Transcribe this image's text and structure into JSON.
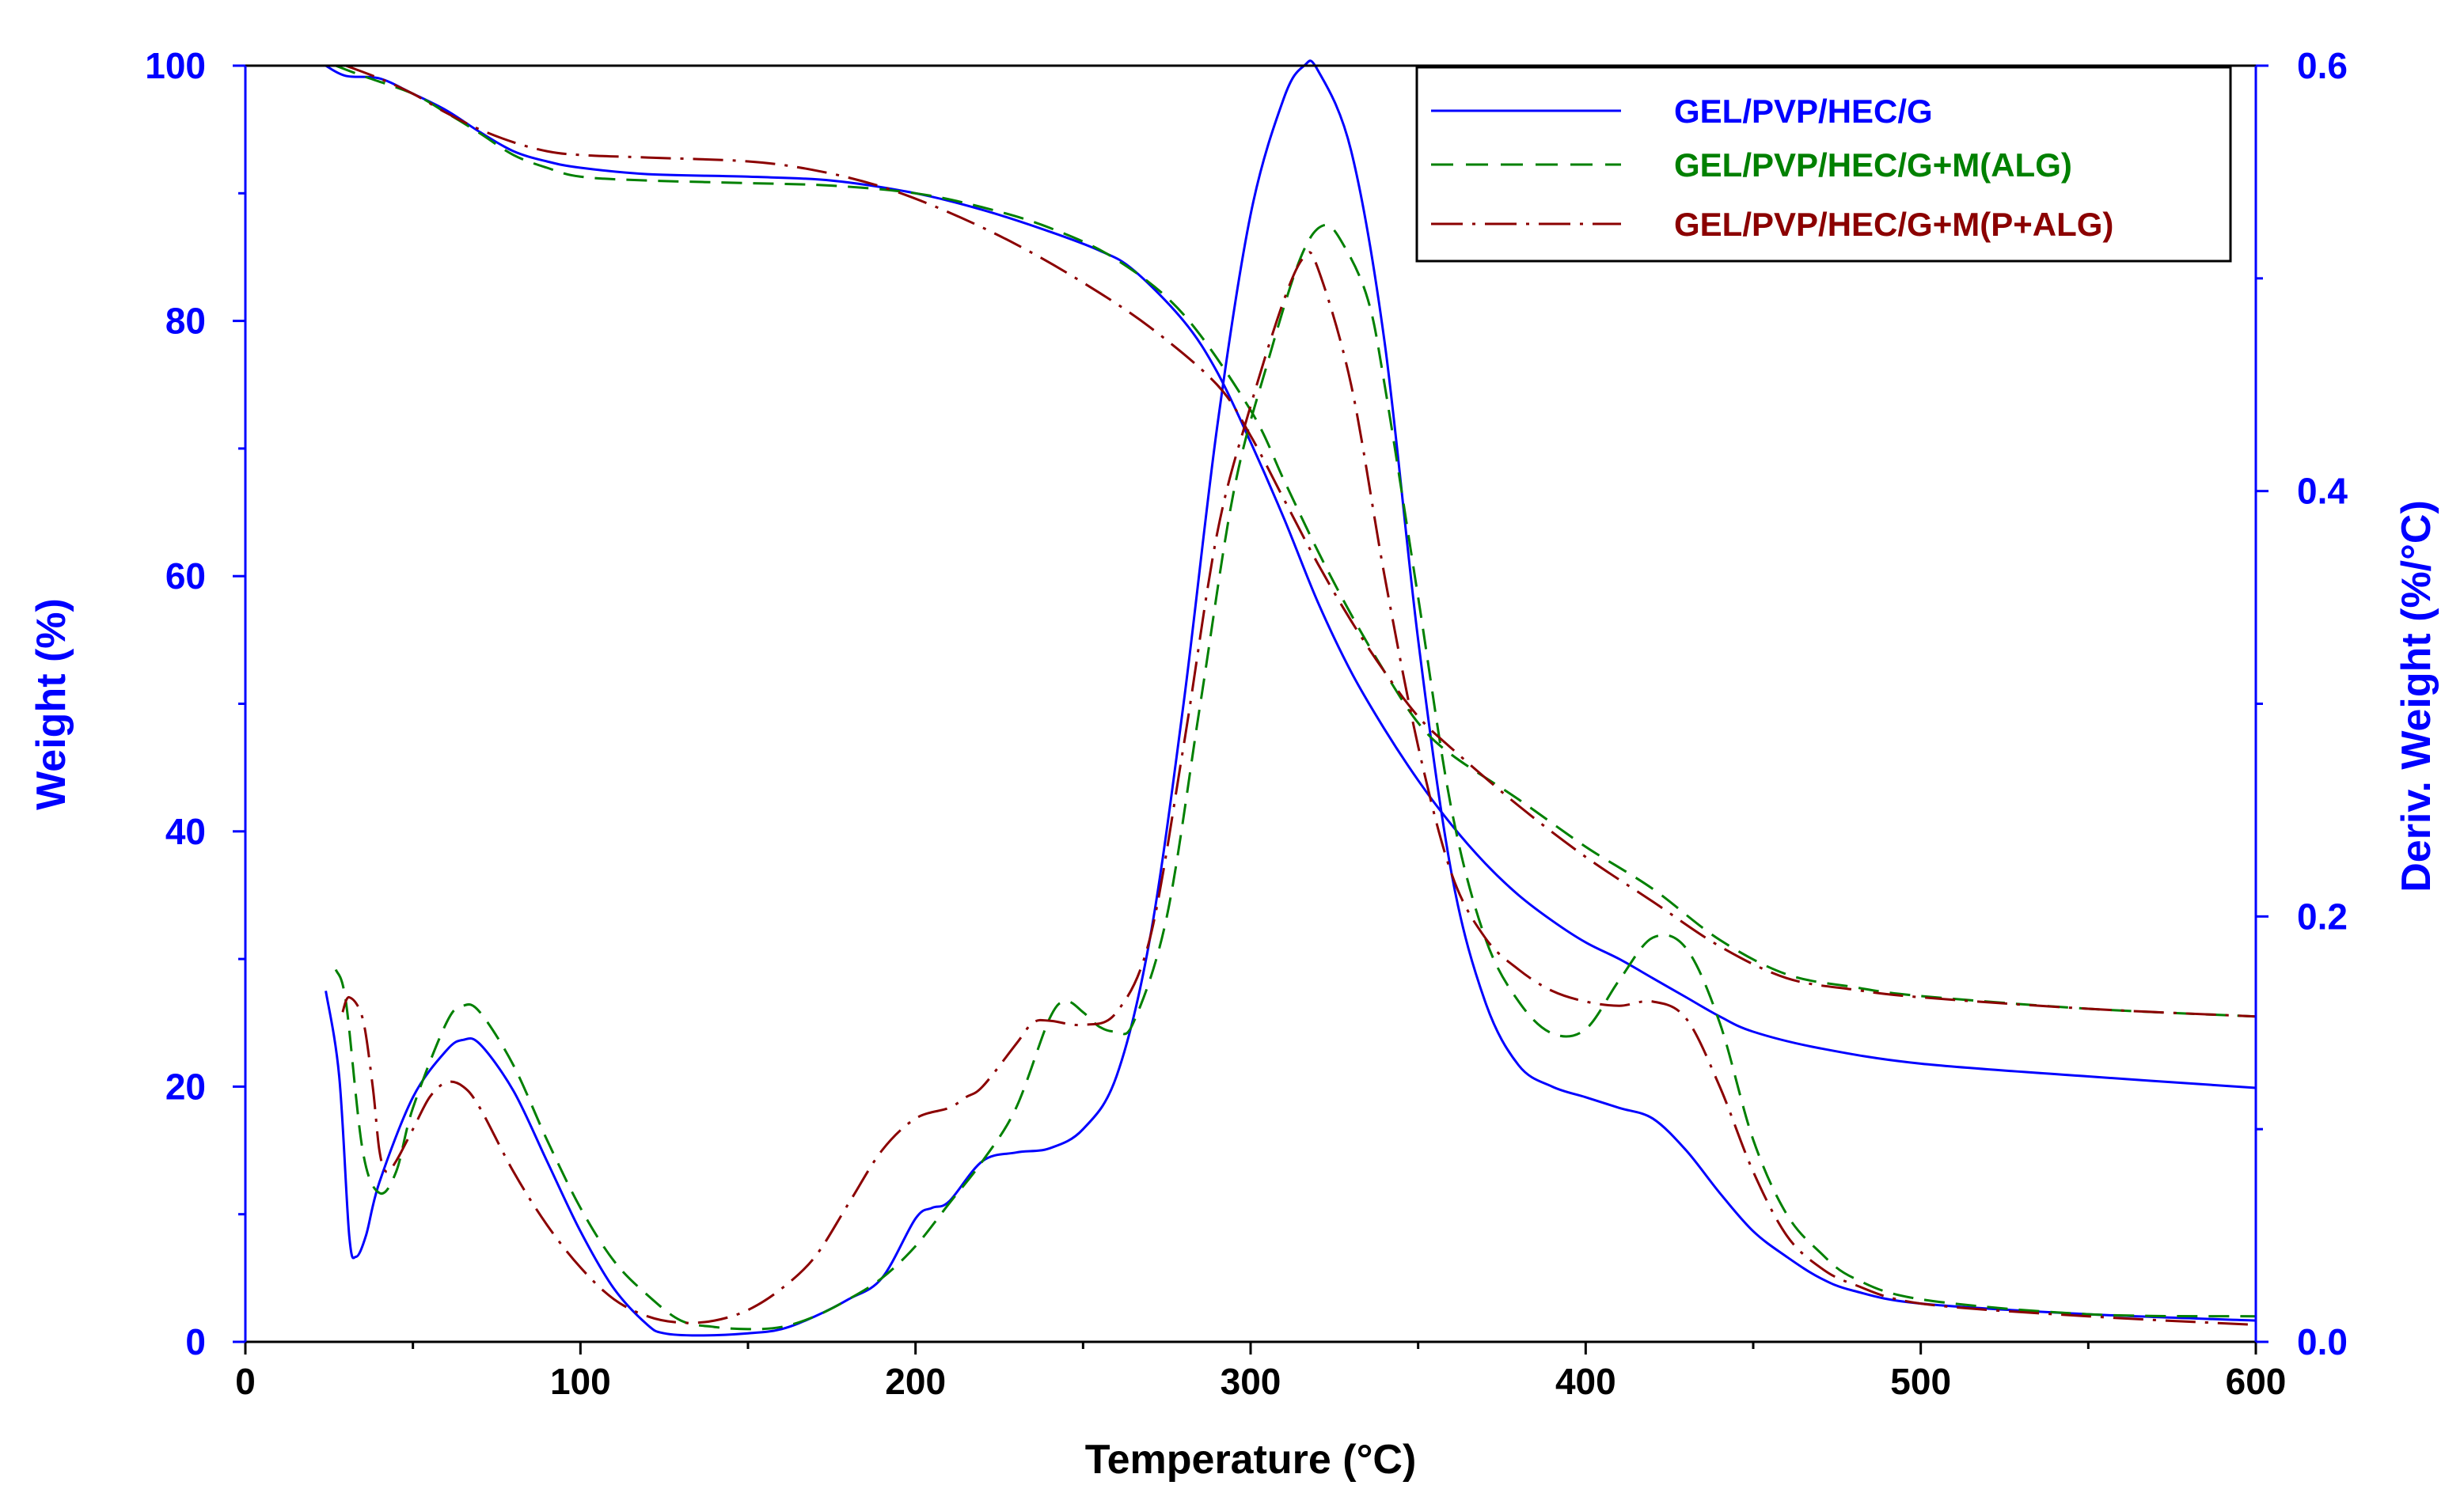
{
  "chart_data": {
    "type": "line",
    "title": "",
    "xlabel": "Temperature (°C)",
    "ylabel_left": "Weight (%)",
    "ylabel_right": "Deriv. Weight (%/°C)",
    "xlim": [
      0,
      600
    ],
    "ylim_left": [
      0,
      100
    ],
    "ylim_right": [
      0,
      0.6
    ],
    "x_ticks": [
      "0",
      "100",
      "200",
      "300",
      "400",
      "500",
      "600"
    ],
    "y_left_ticks": [
      "0",
      "20",
      "40",
      "60",
      "80",
      "100"
    ],
    "y_right_ticks": [
      "0.0",
      "0.2",
      "0.4",
      "0.6"
    ],
    "grid": false,
    "legend_position": "top-right",
    "colors": {
      "axis": "#0000ff",
      "frame": "#000000",
      "text": "#000000"
    },
    "series": [
      {
        "name": "GEL/PVP/HEC/G",
        "color": "#0000ff",
        "dash": "solid",
        "weight": [
          [
            24,
            100
          ],
          [
            30,
            99.2
          ],
          [
            40,
            99
          ],
          [
            50,
            97.8
          ],
          [
            60,
            96.5
          ],
          [
            70,
            94.8
          ],
          [
            80,
            93.3
          ],
          [
            90,
            92.5
          ],
          [
            100,
            92
          ],
          [
            120,
            91.5
          ],
          [
            150,
            91.3
          ],
          [
            175,
            91
          ],
          [
            200,
            90
          ],
          [
            220,
            88.7
          ],
          [
            240,
            87
          ],
          [
            255,
            85.5
          ],
          [
            265,
            84
          ],
          [
            280,
            80
          ],
          [
            290,
            76
          ],
          [
            300,
            70.5
          ],
          [
            310,
            64.5
          ],
          [
            320,
            58
          ],
          [
            330,
            52.5
          ],
          [
            340,
            48
          ],
          [
            350,
            44
          ],
          [
            360,
            40.5
          ],
          [
            370,
            37.5
          ],
          [
            380,
            35
          ],
          [
            390,
            33
          ],
          [
            400,
            31.3
          ],
          [
            410,
            30
          ],
          [
            420,
            28.5
          ],
          [
            430,
            27
          ],
          [
            440,
            25.5
          ],
          [
            450,
            24.3
          ],
          [
            470,
            23
          ],
          [
            500,
            21.8
          ],
          [
            550,
            20.8
          ],
          [
            600,
            19.9
          ]
        ],
        "deriv": [
          [
            24,
            0.165
          ],
          [
            28,
            0.125
          ],
          [
            31,
            0.05
          ],
          [
            33,
            0.04
          ],
          [
            36,
            0.05
          ],
          [
            40,
            0.075
          ],
          [
            50,
            0.115
          ],
          [
            60,
            0.137
          ],
          [
            65,
            0.142
          ],
          [
            70,
            0.14
          ],
          [
            80,
            0.118
          ],
          [
            90,
            0.085
          ],
          [
            100,
            0.052
          ],
          [
            110,
            0.025
          ],
          [
            120,
            0.008
          ],
          [
            125,
            0.004
          ],
          [
            135,
            0.003
          ],
          [
            150,
            0.004
          ],
          [
            160,
            0.006
          ],
          [
            170,
            0.012
          ],
          [
            180,
            0.02
          ],
          [
            190,
            0.03
          ],
          [
            200,
            0.058
          ],
          [
            205,
            0.063
          ],
          [
            210,
            0.066
          ],
          [
            220,
            0.085
          ],
          [
            230,
            0.089
          ],
          [
            240,
            0.091
          ],
          [
            250,
            0.1
          ],
          [
            260,
            0.125
          ],
          [
            270,
            0.19
          ],
          [
            280,
            0.3
          ],
          [
            290,
            0.43
          ],
          [
            300,
            0.53
          ],
          [
            310,
            0.585
          ],
          [
            316,
            0.6
          ],
          [
            320,
            0.598
          ],
          [
            330,
            0.56
          ],
          [
            340,
            0.47
          ],
          [
            350,
            0.33
          ],
          [
            360,
            0.22
          ],
          [
            370,
            0.16
          ],
          [
            380,
            0.13
          ],
          [
            390,
            0.12
          ],
          [
            400,
            0.115
          ],
          [
            410,
            0.11
          ],
          [
            420,
            0.105
          ],
          [
            430,
            0.09
          ],
          [
            440,
            0.07
          ],
          [
            450,
            0.052
          ],
          [
            460,
            0.04
          ],
          [
            470,
            0.03
          ],
          [
            480,
            0.024
          ],
          [
            500,
            0.018
          ],
          [
            550,
            0.013
          ],
          [
            600,
            0.01
          ]
        ]
      },
      {
        "name": "GEL/PVP/HEC/G+M(ALG)",
        "color": "#008000",
        "dash": "long-dash",
        "weight": [
          [
            27,
            100
          ],
          [
            35,
            99.2
          ],
          [
            50,
            97.8
          ],
          [
            60,
            96.3
          ],
          [
            70,
            94.7
          ],
          [
            80,
            93
          ],
          [
            90,
            92
          ],
          [
            100,
            91.3
          ],
          [
            120,
            91
          ],
          [
            150,
            90.8
          ],
          [
            175,
            90.6
          ],
          [
            200,
            90
          ],
          [
            220,
            88.9
          ],
          [
            240,
            87.3
          ],
          [
            260,
            84.8
          ],
          [
            280,
            80.5
          ],
          [
            300,
            73
          ],
          [
            310,
            67.5
          ],
          [
            320,
            62
          ],
          [
            330,
            57
          ],
          [
            340,
            52.5
          ],
          [
            350,
            48.5
          ],
          [
            360,
            46
          ],
          [
            380,
            42.5
          ],
          [
            400,
            38.8
          ],
          [
            420,
            35.5
          ],
          [
            440,
            31.5
          ],
          [
            460,
            28.8
          ],
          [
            480,
            27.8
          ],
          [
            500,
            27.1
          ],
          [
            550,
            26.1
          ],
          [
            600,
            25.5
          ]
        ],
        "deriv": [
          [
            27,
            0.175
          ],
          [
            30,
            0.16
          ],
          [
            35,
            0.09
          ],
          [
            40,
            0.07
          ],
          [
            45,
            0.08
          ],
          [
            50,
            0.11
          ],
          [
            60,
            0.15
          ],
          [
            65,
            0.158
          ],
          [
            70,
            0.155
          ],
          [
            80,
            0.13
          ],
          [
            90,
            0.095
          ],
          [
            100,
            0.063
          ],
          [
            110,
            0.038
          ],
          [
            120,
            0.022
          ],
          [
            130,
            0.01
          ],
          [
            140,
            0.007
          ],
          [
            150,
            0.006
          ],
          [
            160,
            0.007
          ],
          [
            170,
            0.012
          ],
          [
            180,
            0.02
          ],
          [
            190,
            0.03
          ],
          [
            200,
            0.045
          ],
          [
            210,
            0.065
          ],
          [
            220,
            0.085
          ],
          [
            230,
            0.11
          ],
          [
            240,
            0.152
          ],
          [
            245,
            0.16
          ],
          [
            250,
            0.155
          ],
          [
            255,
            0.148
          ],
          [
            260,
            0.146
          ],
          [
            265,
            0.15
          ],
          [
            275,
            0.2
          ],
          [
            285,
            0.3
          ],
          [
            295,
            0.4
          ],
          [
            305,
            0.46
          ],
          [
            315,
            0.51
          ],
          [
            322,
            0.525
          ],
          [
            328,
            0.515
          ],
          [
            335,
            0.49
          ],
          [
            340,
            0.45
          ],
          [
            350,
            0.35
          ],
          [
            360,
            0.25
          ],
          [
            370,
            0.19
          ],
          [
            380,
            0.16
          ],
          [
            390,
            0.145
          ],
          [
            400,
            0.147
          ],
          [
            410,
            0.17
          ],
          [
            420,
            0.19
          ],
          [
            430,
            0.185
          ],
          [
            440,
            0.15
          ],
          [
            450,
            0.095
          ],
          [
            460,
            0.06
          ],
          [
            470,
            0.042
          ],
          [
            480,
            0.03
          ],
          [
            500,
            0.02
          ],
          [
            550,
            0.013
          ],
          [
            600,
            0.012
          ]
        ]
      },
      {
        "name": "GEL/PVP/HEC/G+M(P+ALG)",
        "color": "#8b0000",
        "dash": "dash-dot",
        "weight": [
          [
            30,
            100
          ],
          [
            40,
            99
          ],
          [
            50,
            97.8
          ],
          [
            60,
            96.3
          ],
          [
            70,
            95
          ],
          [
            80,
            94
          ],
          [
            90,
            93.3
          ],
          [
            100,
            93
          ],
          [
            120,
            92.8
          ],
          [
            150,
            92.5
          ],
          [
            170,
            91.8
          ],
          [
            190,
            90.5
          ],
          [
            210,
            88.5
          ],
          [
            230,
            86
          ],
          [
            250,
            83
          ],
          [
            270,
            79.5
          ],
          [
            290,
            75
          ],
          [
            300,
            71
          ],
          [
            310,
            66
          ],
          [
            320,
            61
          ],
          [
            330,
            56.5
          ],
          [
            340,
            52.5
          ],
          [
            350,
            49
          ],
          [
            360,
            46.5
          ],
          [
            380,
            42
          ],
          [
            400,
            38
          ],
          [
            420,
            34.5
          ],
          [
            440,
            31
          ],
          [
            460,
            28.5
          ],
          [
            480,
            27.6
          ],
          [
            500,
            27
          ],
          [
            550,
            26.1
          ],
          [
            600,
            25.5
          ]
        ],
        "deriv": [
          [
            29,
            0.155
          ],
          [
            31,
            0.162
          ],
          [
            35,
            0.152
          ],
          [
            38,
            0.12
          ],
          [
            40,
            0.09
          ],
          [
            42,
            0.08
          ],
          [
            45,
            0.085
          ],
          [
            50,
            0.1
          ],
          [
            55,
            0.115
          ],
          [
            60,
            0.122
          ],
          [
            65,
            0.12
          ],
          [
            70,
            0.11
          ],
          [
            80,
            0.08
          ],
          [
            90,
            0.055
          ],
          [
            100,
            0.035
          ],
          [
            110,
            0.02
          ],
          [
            120,
            0.012
          ],
          [
            130,
            0.009
          ],
          [
            140,
            0.01
          ],
          [
            150,
            0.015
          ],
          [
            160,
            0.025
          ],
          [
            170,
            0.04
          ],
          [
            180,
            0.065
          ],
          [
            190,
            0.09
          ],
          [
            200,
            0.105
          ],
          [
            210,
            0.11
          ],
          [
            215,
            0.115
          ],
          [
            220,
            0.12
          ],
          [
            230,
            0.14
          ],
          [
            235,
            0.15
          ],
          [
            240,
            0.151
          ],
          [
            250,
            0.149
          ],
          [
            260,
            0.155
          ],
          [
            270,
            0.19
          ],
          [
            280,
            0.28
          ],
          [
            290,
            0.38
          ],
          [
            300,
            0.44
          ],
          [
            310,
            0.49
          ],
          [
            316,
            0.51
          ],
          [
            320,
            0.505
          ],
          [
            330,
            0.45
          ],
          [
            340,
            0.36
          ],
          [
            350,
            0.28
          ],
          [
            360,
            0.22
          ],
          [
            370,
            0.19
          ],
          [
            380,
            0.175
          ],
          [
            390,
            0.165
          ],
          [
            400,
            0.16
          ],
          [
            410,
            0.158
          ],
          [
            420,
            0.16
          ],
          [
            430,
            0.152
          ],
          [
            440,
            0.12
          ],
          [
            450,
            0.08
          ],
          [
            460,
            0.05
          ],
          [
            470,
            0.035
          ],
          [
            480,
            0.027
          ],
          [
            500,
            0.018
          ],
          [
            550,
            0.012
          ],
          [
            600,
            0.008
          ]
        ]
      }
    ]
  }
}
